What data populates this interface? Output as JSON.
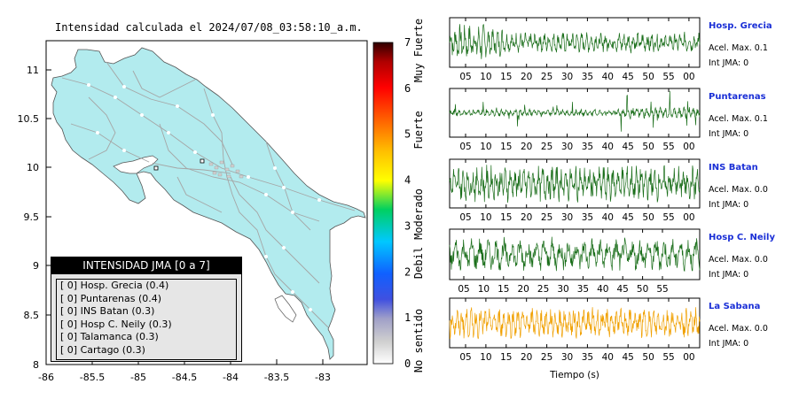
{
  "map": {
    "title": "Intensidad calculada el 2024/07/08_03:58:10_a.m.",
    "lon_ticks": [
      "-86",
      "-85.5",
      "-85",
      "-84.5",
      "-84",
      "-83.5",
      "-83"
    ],
    "lat_ticks": [
      "11",
      "10.5",
      "10",
      "9.5",
      "9",
      "8.5",
      "8"
    ],
    "land_color": "#b2ebee",
    "water_color": "#ffffff"
  },
  "colorbar": {
    "values": [
      "0",
      "1",
      "2",
      "3",
      "4",
      "5",
      "6",
      "7"
    ],
    "categories": [
      "No sentido",
      "Debil",
      "Moderado",
      "Fuerte",
      "Muy Fuerte"
    ]
  },
  "legend": {
    "title": "INTENSIDAD JMA [0 a 7]",
    "rows": [
      "[ 0]  Hosp. Grecia (0.4)",
      "[ 0]  Puntarenas (0.4)",
      "[ 0]  INS Batan (0.3)",
      "[ 0]  Hosp C. Neily (0.3)",
      "[ 0]  Talamanca (0.3)",
      "[ 0]  Cartago (0.3)"
    ]
  },
  "waveforms": {
    "xlabel": "Tiempo (s)",
    "stations": [
      {
        "name": "Hosp. Grecia",
        "acel": "Acel. Max. 0.1",
        "int": "Int JMA: 0",
        "color": "#1a6e1a",
        "ticks": [
          "05",
          "10",
          "15",
          "20",
          "25",
          "30",
          "35",
          "40",
          "45",
          "50",
          "55",
          "00"
        ]
      },
      {
        "name": "Puntarenas",
        "acel": "Acel. Max. 0.1",
        "int": "Int JMA: 0",
        "color": "#1a6e1a",
        "ticks": [
          "05",
          "10",
          "15",
          "20",
          "25",
          "30",
          "35",
          "40",
          "45",
          "50",
          "55",
          "00"
        ]
      },
      {
        "name": "INS Batan",
        "acel": "Acel. Max. 0.0",
        "int": "Int JMA: 0",
        "color": "#1a6e1a",
        "ticks": [
          "05",
          "10",
          "15",
          "20",
          "25",
          "30",
          "35",
          "40",
          "45",
          "50",
          "55",
          "00"
        ]
      },
      {
        "name": "Hosp C. Neily",
        "acel": "Acel. Max. 0.0",
        "int": "Int JMA: 0",
        "color": "#1a6e1a",
        "ticks": [
          "05",
          "10",
          "15",
          "20",
          "25",
          "30",
          "35",
          "40",
          "45",
          "50",
          "55"
        ]
      },
      {
        "name": "La Sabana",
        "acel": "Acel. Max. 0.0",
        "int": "Int JMA: 0",
        "color": "#f0a000",
        "ticks": [
          "05",
          "10",
          "15",
          "20",
          "25",
          "30",
          "35",
          "40",
          "45",
          "50",
          "55",
          "00"
        ]
      }
    ]
  },
  "chart_data": [
    {
      "type": "map",
      "title": "Intensidad calculada el 2024/07/08_03:58:10_a.m.",
      "xlim": [
        -86,
        -82.5
      ],
      "ylim": [
        8,
        11.3
      ],
      "x_ticks": [
        -86,
        -85.5,
        -85,
        -84.5,
        -84,
        -83.5,
        -83
      ],
      "y_ticks": [
        8,
        8.5,
        9,
        9.5,
        10,
        10.5,
        11
      ],
      "colorbar_range": [
        0,
        7
      ],
      "colorbar_labels": [
        "No sentido",
        "Debil",
        "Moderado",
        "Fuerte",
        "Muy Fuerte"
      ]
    },
    {
      "type": "line",
      "xlabel": "Tiempo (s)",
      "series": [
        {
          "name": "Hosp. Grecia",
          "acel_max": 0.1,
          "int_jma": 0
        },
        {
          "name": "Puntarenas",
          "acel_max": 0.1,
          "int_jma": 0
        },
        {
          "name": "INS Batan",
          "acel_max": 0.0,
          "int_jma": 0
        },
        {
          "name": "Hosp C. Neily",
          "acel_max": 0.0,
          "int_jma": 0
        },
        {
          "name": "La Sabana",
          "acel_max": 0.0,
          "int_jma": 0
        }
      ]
    }
  ]
}
